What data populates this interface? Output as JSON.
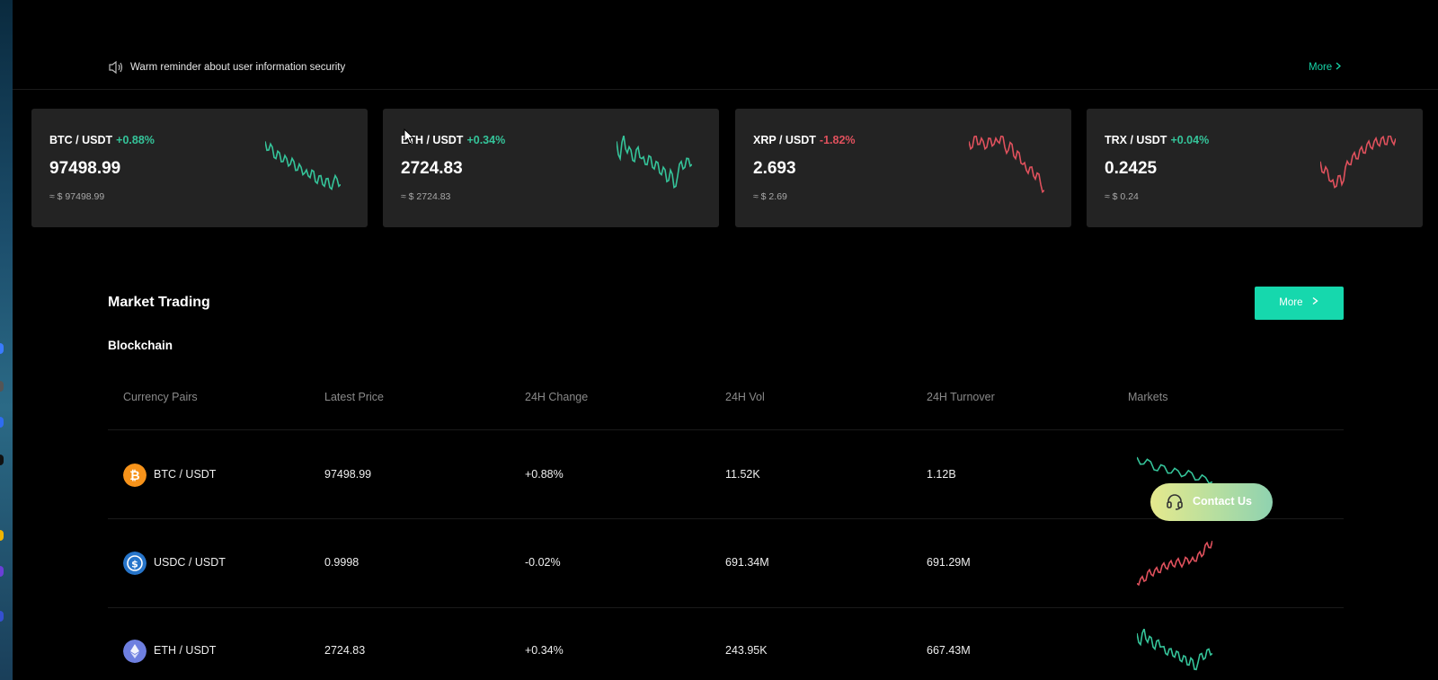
{
  "notice": {
    "text": "Warm reminder about user information security",
    "more": "More",
    "icon": "speaker-icon"
  },
  "tickers": [
    {
      "pair": "BTC / USDT",
      "change": "+0.88%",
      "trend": "up",
      "price": "97498.99",
      "approx": "≈ $ 97498.99",
      "color": "#35c49a",
      "spark": [
        0.9,
        0.75,
        0.8,
        0.6,
        0.7,
        0.55,
        0.6,
        0.5,
        0.55,
        0.4,
        0.45,
        0.35,
        0.3,
        0.4,
        0.2,
        0.3,
        0.15,
        0.25,
        0.1,
        0.2,
        0.25,
        0.15
      ]
    },
    {
      "pair": "ETH / USDT",
      "change": "+0.34%",
      "trend": "up",
      "price": "2724.83",
      "approx": "≈ $ 2724.83",
      "color": "#35c49a",
      "spark": [
        0.9,
        0.6,
        1.0,
        0.7,
        0.75,
        0.55,
        0.8,
        0.6,
        0.5,
        0.65,
        0.45,
        0.55,
        0.35,
        0.45,
        0.2,
        0.4,
        0.1,
        0.3,
        0.55,
        0.45,
        0.6,
        0.5
      ]
    },
    {
      "pair": "XRP / USDT",
      "change": "-1.82%",
      "trend": "down",
      "price": "2.693",
      "approx": "≈ $ 2.69",
      "color": "#e0515d",
      "spark": [
        0.9,
        0.8,
        1.0,
        0.85,
        0.9,
        0.8,
        0.95,
        0.85,
        0.9,
        1.0,
        0.8,
        0.75,
        0.85,
        0.6,
        0.7,
        0.5,
        0.4,
        0.45,
        0.3,
        0.35,
        0.15,
        0.05
      ]
    },
    {
      "pair": "TRX / USDT",
      "change": "+0.04%",
      "trend": "up",
      "price": "0.2425",
      "approx": "≈ $ 0.24",
      "color": "#e0515d",
      "spark": [
        0.55,
        0.35,
        0.4,
        0.2,
        0.1,
        0.3,
        0.15,
        0.45,
        0.5,
        0.65,
        0.6,
        0.75,
        0.7,
        0.85,
        0.8,
        0.9,
        0.85,
        0.95,
        0.85,
        1.0,
        0.9,
        0.95
      ]
    }
  ],
  "market": {
    "title": "Market Trading",
    "more": "More",
    "subtitle": "Blockchain",
    "headers": [
      "Currency Pairs",
      "Latest Price",
      "24H Change",
      "24H Vol",
      "24H Turnover",
      "Markets"
    ],
    "rows": [
      {
        "pair": "BTC / USDT",
        "price": "97498.99",
        "change": "+0.88%",
        "trend": "up",
        "vol": "11.52K",
        "turnover": "1.12B",
        "icon": "bitcoin-icon",
        "icon_color": "#f7931a",
        "color": "#35c49a",
        "spark": [
          0.9,
          0.75,
          0.8,
          0.6,
          0.7,
          0.55,
          0.6,
          0.5,
          0.55,
          0.4,
          0.45,
          0.35
        ]
      },
      {
        "pair": "USDC / USDT",
        "price": "0.9998",
        "change": "-0.02%",
        "trend": "down",
        "vol": "691.34M",
        "turnover": "691.29M",
        "icon": "usdc-icon",
        "icon_color": "#2775ca",
        "color": "#e0515d",
        "spark": [
          0.05,
          0.15,
          0.1,
          0.3,
          0.25,
          0.35,
          0.3,
          0.45,
          0.4,
          0.5,
          0.45,
          0.55,
          0.5,
          0.5,
          0.6,
          0.55,
          0.55,
          0.7,
          0.65,
          0.9,
          0.85,
          1.0
        ]
      },
      {
        "pair": "ETH / USDT",
        "price": "2724.83",
        "change": "+0.34%",
        "trend": "up",
        "vol": "243.95K",
        "turnover": "667.43M",
        "icon": "ethereum-icon",
        "icon_color": "#6e7fe0",
        "color": "#35c49a",
        "spark": [
          0.9,
          0.65,
          1.0,
          0.7,
          0.8,
          0.55,
          0.75,
          0.6,
          0.45,
          0.55,
          0.4,
          0.5,
          0.3,
          0.4,
          0.2,
          0.35,
          0.1,
          0.25,
          0.45,
          0.35,
          0.55,
          0.45
        ]
      }
    ]
  },
  "contact": {
    "label": "Contact Us",
    "icon": "headset-icon"
  }
}
